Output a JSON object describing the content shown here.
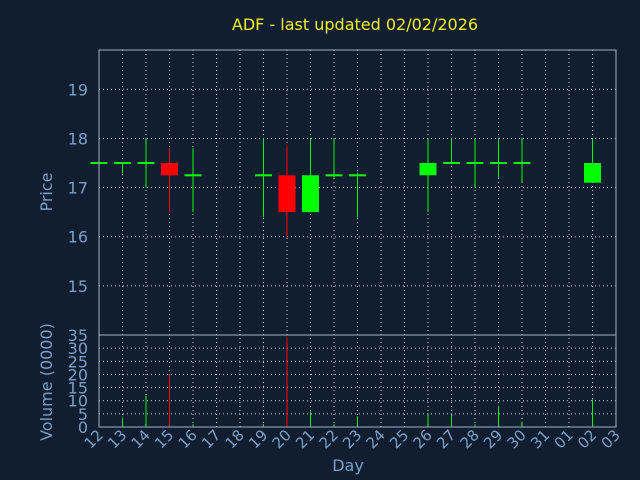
{
  "chart_data": {
    "type": "candlestick",
    "title": "ADF - last updated 02/02/2026",
    "xlabel": "Day",
    "price_panel": {
      "ylabel": "Price",
      "ylim": [
        14,
        19.8
      ],
      "yticks": [
        15,
        16,
        17,
        18,
        19
      ],
      "grid": true
    },
    "volume_panel": {
      "ylabel": "Volume (0000)",
      "ylim": [
        0,
        35
      ],
      "yticks": [
        0,
        5,
        10,
        15,
        20,
        25,
        30,
        35
      ],
      "grid": true
    },
    "x_tick_labels": [
      "12",
      "13",
      "14",
      "15",
      "16",
      "17",
      "18",
      "19",
      "20",
      "21",
      "22",
      "23",
      "24",
      "25",
      "26",
      "27",
      "28",
      "29",
      "30",
      "31",
      "01",
      "02",
      "03"
    ],
    "colors": {
      "up": "#00ff00",
      "down": "#ff0000"
    },
    "candles": [
      {
        "day": "12",
        "open": 17.5,
        "high": 17.5,
        "low": 17.5,
        "close": 17.5,
        "volume": 0.5
      },
      {
        "day": "13",
        "open": 17.5,
        "high": 17.5,
        "low": 17.3,
        "close": 17.5,
        "volume": 3.5
      },
      {
        "day": "14",
        "open": 17.5,
        "high": 18.0,
        "low": 17.0,
        "close": 17.5,
        "volume": 12
      },
      {
        "day": "15",
        "open": 17.5,
        "high": 17.8,
        "low": 16.5,
        "close": 17.25,
        "volume": 20
      },
      {
        "day": "16",
        "open": 17.25,
        "high": 17.8,
        "low": 16.5,
        "close": 17.25,
        "volume": 1
      },
      {
        "day": "19",
        "open": 17.25,
        "high": 18.0,
        "low": 16.4,
        "close": 17.25,
        "volume": 1
      },
      {
        "day": "20",
        "open": 17.25,
        "high": 17.85,
        "low": 16.0,
        "close": 16.5,
        "volume": 34
      },
      {
        "day": "21",
        "open": 16.5,
        "high": 18.0,
        "low": 16.5,
        "close": 17.25,
        "volume": 6
      },
      {
        "day": "22",
        "open": 17.25,
        "high": 18.0,
        "low": 17.2,
        "close": 17.25,
        "volume": 1
      },
      {
        "day": "23",
        "open": 17.25,
        "high": 17.3,
        "low": 16.4,
        "close": 17.25,
        "volume": 4
      },
      {
        "day": "26",
        "open": 17.25,
        "high": 18.0,
        "low": 16.5,
        "close": 17.5,
        "volume": 5
      },
      {
        "day": "27",
        "open": 17.5,
        "high": 18.0,
        "low": 17.5,
        "close": 17.5,
        "volume": 4.5
      },
      {
        "day": "28",
        "open": 17.5,
        "high": 18.0,
        "low": 17.0,
        "close": 17.5,
        "volume": 1
      },
      {
        "day": "29",
        "open": 17.5,
        "high": 18.0,
        "low": 17.2,
        "close": 17.5,
        "volume": 8
      },
      {
        "day": "30",
        "open": 17.5,
        "high": 18.0,
        "low": 17.1,
        "close": 17.5,
        "volume": 2
      },
      {
        "day": "02",
        "open": 17.1,
        "high": 18.0,
        "low": 17.1,
        "close": 17.5,
        "volume": 10.5
      }
    ]
  }
}
